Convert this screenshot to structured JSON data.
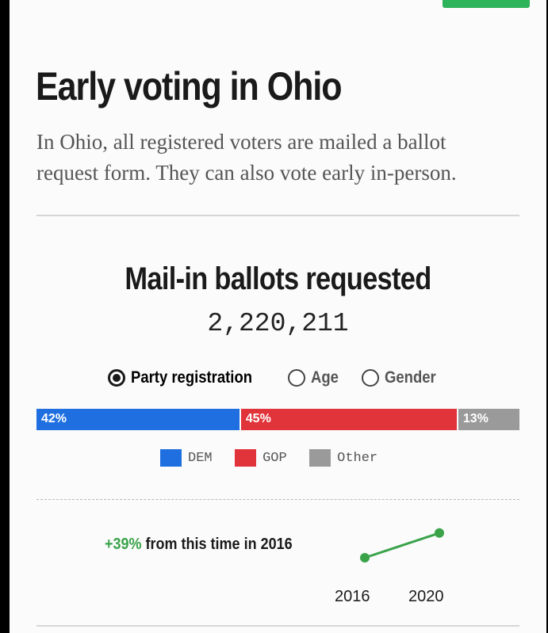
{
  "header": {
    "title": "Early voting in Ohio",
    "intro": "In Ohio, all registered voters are mailed a ballot request form. They can also vote early in-person."
  },
  "chart": {
    "title": "Mail-in ballots requested",
    "total": "2,220,211",
    "toggle": {
      "options": [
        "Party registration",
        "Age",
        "Gender"
      ],
      "selected": "Party registration"
    },
    "colors": {
      "dem": "#1f6fe0",
      "gop": "#e0343a",
      "other": "#9a9a9a",
      "positive": "#3aa34a"
    },
    "segments": [
      {
        "label": "42%",
        "legend": "DEM"
      },
      {
        "label": "45%",
        "legend": "GOP"
      },
      {
        "label": "13%",
        "legend": "Other"
      }
    ],
    "change": {
      "value": "+39%",
      "text": "from this time in 2016"
    },
    "years": [
      "2016",
      "2020"
    ]
  },
  "chart_data": [
    {
      "type": "bar",
      "title": "Mail-in ballots requested",
      "stacked": true,
      "categories": [
        "Party registration"
      ],
      "series": [
        {
          "name": "DEM",
          "values": [
            42
          ]
        },
        {
          "name": "GOP",
          "values": [
            45
          ]
        },
        {
          "name": "Other",
          "values": [
            13
          ]
        }
      ],
      "units": "%",
      "legend": "bottom-center"
    },
    {
      "type": "line",
      "x": [
        "2016",
        "2020"
      ],
      "y": [
        100,
        139
      ],
      "annotation": "+39% from this time in 2016"
    }
  ]
}
